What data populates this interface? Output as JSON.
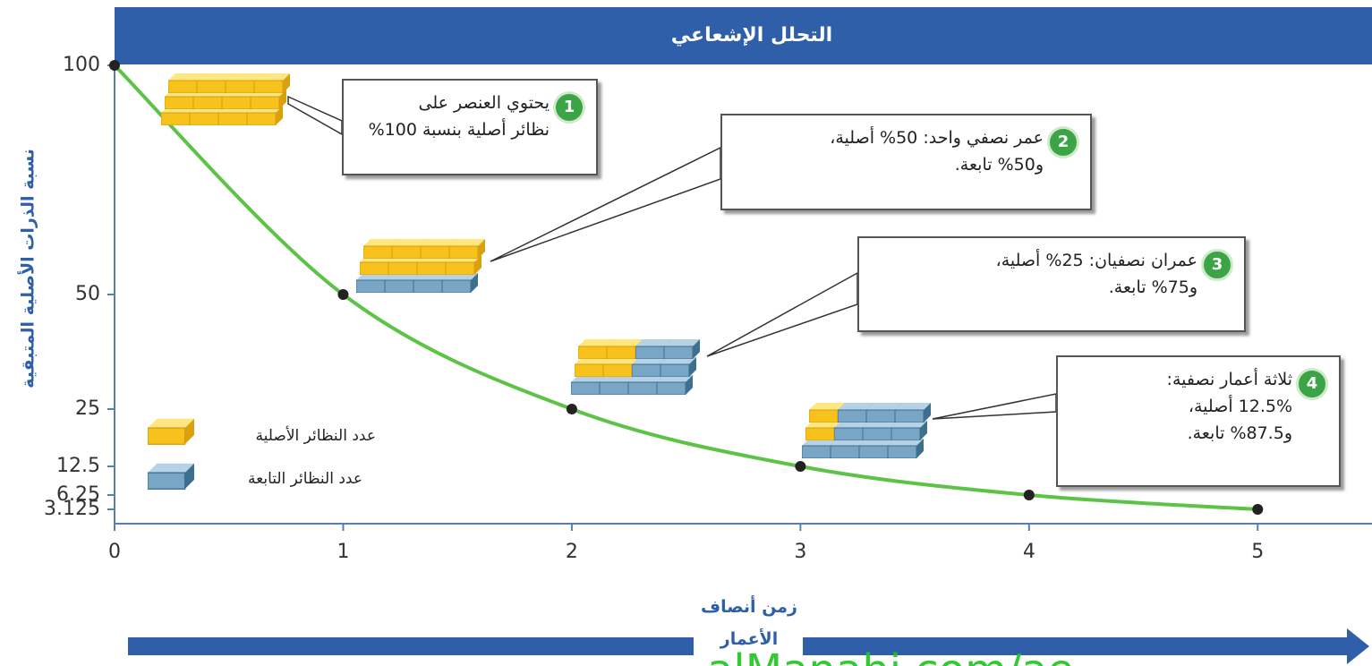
{
  "chart_data": {
    "type": "line",
    "title": "التحلل الإشعاعي",
    "xlabel": "زمن أنصاف الأعمار",
    "ylabel": "نسبة الذرات الأصلية المتبقية",
    "x": [
      0,
      1,
      2,
      3,
      4,
      5
    ],
    "values": [
      100,
      50,
      25,
      12.5,
      6.25,
      3.125
    ],
    "color": "#5cc346",
    "xlim": [
      0,
      5.5
    ],
    "ylim": [
      0,
      100
    ],
    "xticks": [
      0,
      1,
      2,
      3,
      4,
      5
    ],
    "yticks": [
      100,
      50,
      25,
      12.5,
      6.25,
      3.125
    ],
    "legend": [
      {
        "label": "عدد النظائر الأصلية",
        "color": "#f7c21b"
      },
      {
        "label": "عدد النظائر التابعة",
        "color": "#5f8fb3"
      }
    ],
    "callouts": [
      {
        "number": 1,
        "lines": [
          "يحتوي العنصر على",
          "نظائر أصلية بنسبة 100%"
        ]
      },
      {
        "number": 2,
        "lines": [
          "عمر نصفي واحد: 50% أصلية،",
          "و50% تابعة."
        ]
      },
      {
        "number": 3,
        "lines": [
          "عمران نصفيان: 25% أصلية،",
          "و75% تابعة."
        ]
      },
      {
        "number": 4,
        "lines": [
          "ثلاثة أعمار نصفية:",
          "12.5% أصلية،",
          "و87.5% تابعة."
        ]
      }
    ],
    "watermark": "alManahj.com/ae"
  }
}
